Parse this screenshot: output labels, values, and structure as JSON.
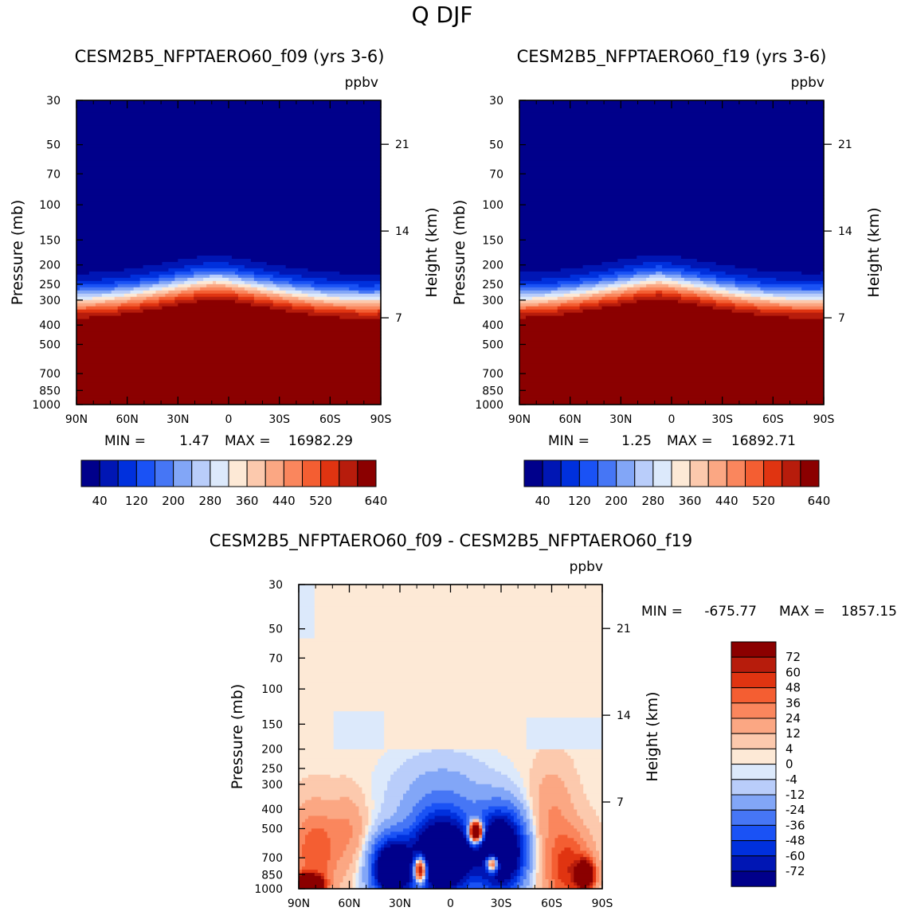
{
  "figure_title": "Q DJF",
  "chart_data": [
    {
      "type": "heatmap",
      "title": "CESM2B5_NFPTAERO60_f09 (yrs 3-6)",
      "units": "ppbv",
      "ylabel": "Pressure (mb)",
      "ylabel_right": "Height (km)",
      "x_ticks": [
        "90N",
        "60N",
        "30N",
        "0",
        "30S",
        "60S",
        "90S"
      ],
      "x_range": [
        90,
        -90
      ],
      "y_ticks": [
        30,
        50,
        70,
        100,
        150,
        200,
        250,
        300,
        400,
        500,
        700,
        850,
        1000
      ],
      "y_range": [
        30,
        1000
      ],
      "y_ticks_right": [
        21,
        14,
        7
      ],
      "min_label": "MIN =",
      "min_value": "1.47",
      "max_label": "MAX =",
      "max_value": "16982.29",
      "colorbar_levels": [
        40,
        80,
        120,
        160,
        200,
        240,
        280,
        320,
        360,
        400,
        440,
        480,
        520,
        560,
        600,
        640
      ],
      "colorbar_labels": [
        "40",
        "120",
        "200",
        "280",
        "360",
        "440",
        "520",
        "640"
      ],
      "note": "Q very low (<40) above tropopause, rising to >640 ppbv in troposphere; tropopause near 400mb at poles, ~330mb at equator"
    },
    {
      "type": "heatmap",
      "title": "CESM2B5_NFPTAERO60_f19 (yrs 3-6)",
      "units": "ppbv",
      "ylabel": "Pressure (mb)",
      "ylabel_right": "Height (km)",
      "x_ticks": [
        "90N",
        "60N",
        "30N",
        "0",
        "30S",
        "60S",
        "90S"
      ],
      "x_range": [
        90,
        -90
      ],
      "y_ticks": [
        30,
        50,
        70,
        100,
        150,
        200,
        250,
        300,
        400,
        500,
        700,
        850,
        1000
      ],
      "y_range": [
        30,
        1000
      ],
      "y_ticks_right": [
        21,
        14,
        7
      ],
      "min_label": "MIN =",
      "min_value": "1.25",
      "max_label": "MAX =",
      "max_value": "16892.71",
      "colorbar_levels": [
        40,
        80,
        120,
        160,
        200,
        240,
        280,
        320,
        360,
        400,
        440,
        480,
        520,
        560,
        600,
        640
      ],
      "colorbar_labels": [
        "40",
        "120",
        "200",
        "280",
        "360",
        "440",
        "520",
        "640"
      ]
    },
    {
      "type": "heatmap",
      "title": "CESM2B5_NFPTAERO60_f09 - CESM2B5_NFPTAERO60_f19",
      "units": "ppbv",
      "ylabel": "Pressure (mb)",
      "ylabel_right": "Height (km)",
      "x_ticks": [
        "90N",
        "60N",
        "30N",
        "0",
        "30S",
        "60S",
        "90S"
      ],
      "x_range": [
        90,
        -90
      ],
      "y_ticks": [
        30,
        50,
        70,
        100,
        150,
        200,
        250,
        300,
        400,
        500,
        700,
        850,
        1000
      ],
      "y_range": [
        30,
        1000
      ],
      "y_ticks_right": [
        21,
        14,
        7
      ],
      "min_label": "MIN =",
      "min_value": "-675.77",
      "max_label": "MAX =",
      "max_value": "1857.15",
      "colorbar_levels": [
        72,
        60,
        48,
        36,
        24,
        12,
        4,
        0,
        -4,
        -12,
        -24,
        -36,
        -48,
        -60,
        -72
      ],
      "colorbar_labels": [
        "72",
        "60",
        "48",
        "36",
        "24",
        "12",
        "4",
        "0",
        "-4",
        "-12",
        "-24",
        "-36",
        "-48",
        "-60",
        "-72"
      ]
    }
  ],
  "colors": {
    "seq": [
      "#00008b",
      "#0016b4",
      "#0030dd",
      "#1a52f5",
      "#4676f5",
      "#82a6f7",
      "#b9cdfa",
      "#dce9fb",
      "#fde9d6",
      "#fcc9ad",
      "#fba783",
      "#fa865d",
      "#f45e32",
      "#e03411",
      "#b71c0c",
      "#8b0000"
    ],
    "diff": [
      "#8b0000",
      "#b71c0c",
      "#e03411",
      "#f45e32",
      "#fa865d",
      "#fba783",
      "#fcc9ad",
      "#fde9d6",
      "#dce9fb",
      "#b9cdfa",
      "#82a6f7",
      "#4676f5",
      "#1a52f5",
      "#0030dd",
      "#0016b4",
      "#00008b"
    ]
  }
}
